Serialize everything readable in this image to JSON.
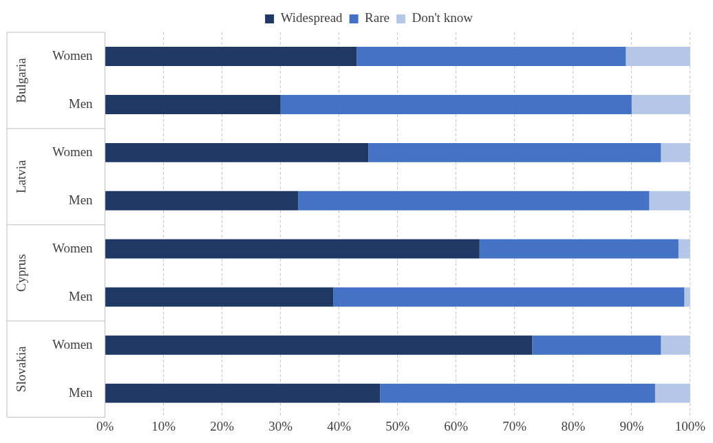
{
  "chart_data": {
    "type": "bar",
    "orientation": "horizontal",
    "stacked": true,
    "categories": [
      "Women",
      "Men",
      "Women",
      "Men",
      "Women",
      "Men",
      "Women",
      "Men"
    ],
    "series": [
      {
        "name": "Widespread",
        "color": "#203864",
        "values": [
          43,
          30,
          45,
          33,
          64,
          39,
          73,
          47
        ]
      },
      {
        "name": "Rare",
        "color": "#4472c4",
        "values": [
          46,
          60,
          50,
          60,
          34,
          60,
          22,
          47
        ]
      },
      {
        "name": "Don't know",
        "color": "#b4c7e7",
        "values": [
          11,
          10,
          5,
          7,
          2,
          1,
          5,
          6
        ]
      }
    ],
    "xlim": [
      0,
      100
    ],
    "xticks": [
      {
        "value": 0,
        "label": "0%"
      },
      {
        "value": 10,
        "label": "10%"
      },
      {
        "value": 20,
        "label": "20%"
      },
      {
        "value": 30,
        "label": "30%"
      },
      {
        "value": 40,
        "label": "40%"
      },
      {
        "value": 50,
        "label": "50%"
      },
      {
        "value": 60,
        "label": "60%"
      },
      {
        "value": 70,
        "label": "70%"
      },
      {
        "value": 80,
        "label": "80%"
      },
      {
        "value": 90,
        "label": "90%"
      },
      {
        "value": 100,
        "label": "100%"
      }
    ],
    "annotations": [
      "Bulgaria",
      "Latvia",
      "Cyprus",
      "Slovakia"
    ],
    "grid": "x",
    "legend": "top"
  }
}
